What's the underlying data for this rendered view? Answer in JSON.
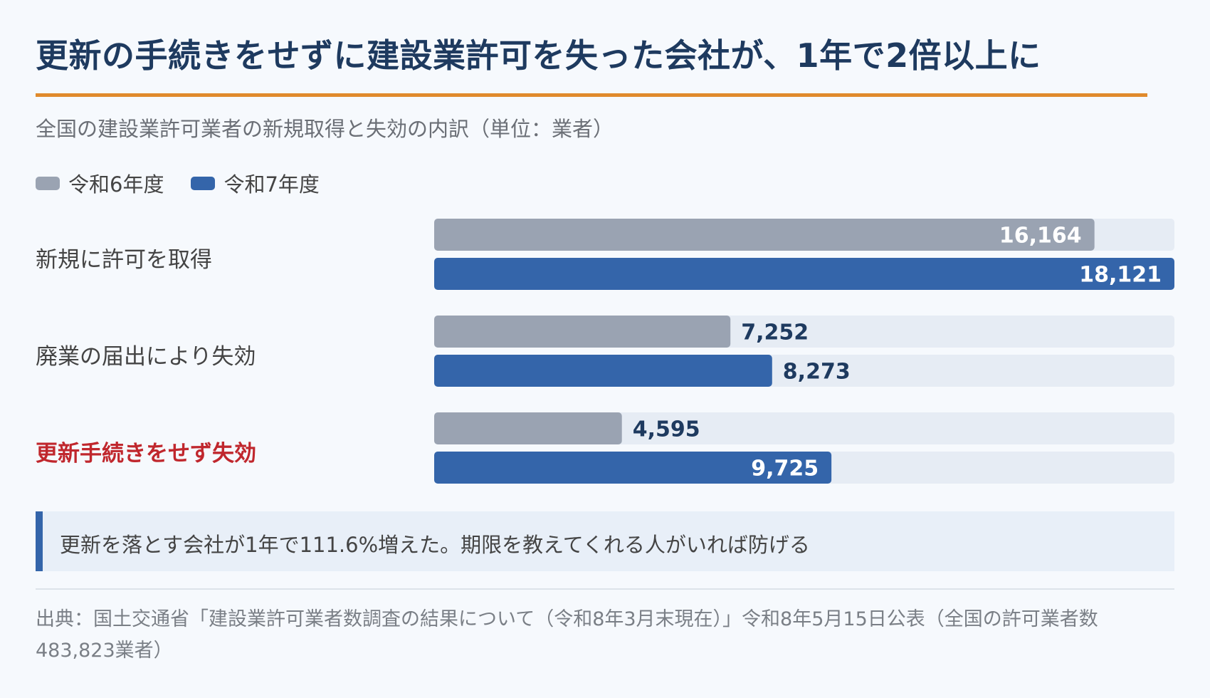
{
  "title": "更新の手続きをせずに建設業許可を失った会社が、1年で2倍以上に",
  "subtitle": "全国の建設業許可業者の新規取得と失効の内訳（単位：業者）",
  "legend": [
    {
      "label": "令和6年度",
      "color": "#9aa3b2"
    },
    {
      "label": "令和7年度",
      "color": "#3465aa"
    }
  ],
  "chart_data": {
    "type": "bar",
    "orientation": "horizontal",
    "categories": [
      "新規に許可を取得",
      "廃業の届出により失効",
      "更新手続きをせず失効"
    ],
    "highlighted_category": "更新手続きをせず失効",
    "series": [
      {
        "name": "令和6年度",
        "values": [
          16164,
          7252,
          4595
        ],
        "labels": [
          "16,164",
          "7,252",
          "4,595"
        ],
        "color": "#9aa3b2"
      },
      {
        "name": "令和7年度",
        "values": [
          18121,
          8273,
          9725
        ],
        "labels": [
          "18,121",
          "8,273",
          "9,725"
        ],
        "color": "#3465aa"
      }
    ],
    "xlim": [
      0,
      18121
    ],
    "track_color": "#e6ecf4",
    "highlight_color": "#c0272d"
  },
  "note": "更新を落とす会社が1年で111.6%増えた。期限を教えてくれる人がいれば防げる",
  "source": "出典：国土交通省「建設業許可業者数調査の結果について（令和8年3月末現在）」令和8年5月15日公表（全国の許可業者数483,823業者）"
}
